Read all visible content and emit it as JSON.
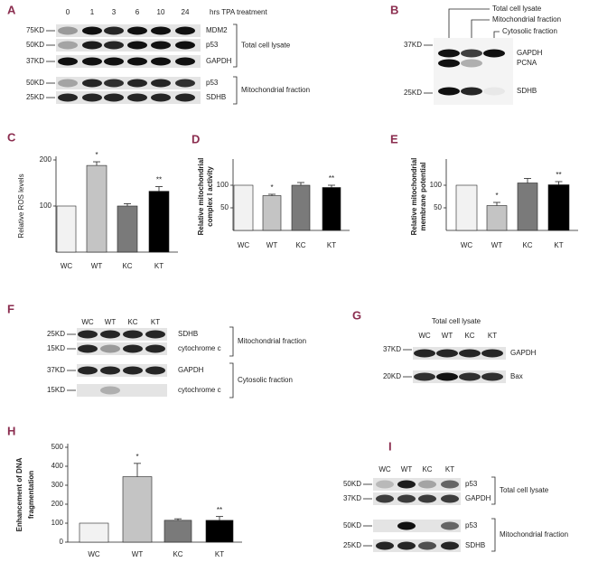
{
  "chart_data": [
    {
      "type": "bar",
      "label": "C",
      "ylabel": [
        "Relative ROS levels"
      ],
      "categories": [
        "WC",
        "WT",
        "KC",
        "KT"
      ],
      "values": [
        100,
        188,
        100,
        132
      ],
      "errors": [
        0,
        8,
        5,
        10
      ],
      "significance": [
        null,
        "*",
        null,
        "**"
      ],
      "colors": [
        "#f2f2f2",
        "#c4c4c4",
        "#7a7a7a",
        "#000000"
      ],
      "ylim": [
        0,
        200
      ],
      "yticks": [
        100,
        200
      ]
    },
    {
      "type": "bar",
      "label": "D",
      "ylabel": [
        "Relative mitochondrial",
        "complex I activity"
      ],
      "categories": [
        "WC",
        "WT",
        "KC",
        "KT"
      ],
      "values": [
        100,
        77,
        100,
        95
      ],
      "errors": [
        0,
        3,
        6,
        5
      ],
      "significance": [
        null,
        "*",
        null,
        "**"
      ],
      "colors": [
        "#f2f2f2",
        "#c4c4c4",
        "#7a7a7a",
        "#000000"
      ],
      "ylim": [
        0,
        150
      ],
      "yticks": [
        50,
        100
      ]
    },
    {
      "type": "bar",
      "label": "E",
      "ylabel": [
        "Relative mitochondrial",
        "membrane potential"
      ],
      "categories": [
        "WC",
        "WT",
        "KC",
        "KT"
      ],
      "values": [
        100,
        55,
        105,
        101
      ],
      "errors": [
        0,
        7,
        10,
        7
      ],
      "significance": [
        null,
        "*",
        null,
        "**"
      ],
      "colors": [
        "#f2f2f2",
        "#c4c4c4",
        "#7a7a7a",
        "#000000"
      ],
      "ylim": [
        0,
        150
      ],
      "yticks": [
        50,
        100
      ]
    },
    {
      "type": "bar",
      "label": "H",
      "ylabel": [
        "Enhancement of DNA",
        "fragmentation"
      ],
      "categories": [
        "WC",
        "WT",
        "KC",
        "KT"
      ],
      "values": [
        100,
        345,
        115,
        115
      ],
      "errors": [
        0,
        70,
        8,
        20
      ],
      "significance": [
        null,
        "*",
        null,
        "**"
      ],
      "colors": [
        "#f2f2f2",
        "#c4c4c4",
        "#7a7a7a",
        "#000000"
      ],
      "ylim": [
        0,
        500
      ],
      "yticks": [
        0,
        100,
        200,
        300,
        400,
        500
      ]
    }
  ],
  "blots": {
    "A": {
      "label": "A",
      "lanes": [
        "0",
        "1",
        "3",
        "6",
        "10",
        "24"
      ],
      "lanes_title": "hrs TPA treatment",
      "markers": [
        "75KD",
        "50KD",
        "37KD",
        "50KD",
        "25KD"
      ],
      "bands": [
        "MDM2",
        "p53",
        "GAPDH",
        "p53",
        "SDHB"
      ],
      "groups": [
        "Total cell lysate",
        "Mitochondrial fraction"
      ]
    },
    "B": {
      "label": "B",
      "headers": [
        "Total cell lysate",
        "Mitochondrial fraction",
        "Cytosolic fraction"
      ],
      "markers": [
        "37KD",
        "25KD"
      ],
      "bands": [
        "GAPDH",
        "PCNA",
        "SDHB"
      ]
    },
    "F": {
      "label": "F",
      "lanes": [
        "WC",
        "WT",
        "KC",
        "KT"
      ],
      "markers": [
        "25KD",
        "15KD",
        "37KD",
        "15KD"
      ],
      "bands": [
        "SDHB",
        "cytochrome c",
        "GAPDH",
        "cytochrome c"
      ],
      "groups": [
        "Mitochondrial fraction",
        "Cytosolic fraction"
      ]
    },
    "G": {
      "label": "G",
      "title": "Total cell lysate",
      "lanes": [
        "WC",
        "WT",
        "KC",
        "KT"
      ],
      "markers": [
        "37KD",
        "20KD"
      ],
      "bands": [
        "GAPDH",
        "Bax"
      ]
    },
    "I": {
      "label": "I",
      "lanes": [
        "WC",
        "WT",
        "KC",
        "KT"
      ],
      "markers": [
        "50KD",
        "37KD",
        "50KD",
        "25KD"
      ],
      "bands": [
        "p53",
        "GAPDH",
        "p53",
        "SDHB"
      ],
      "groups": [
        "Total cell lysate",
        "Mitochondrial fraction"
      ]
    }
  }
}
